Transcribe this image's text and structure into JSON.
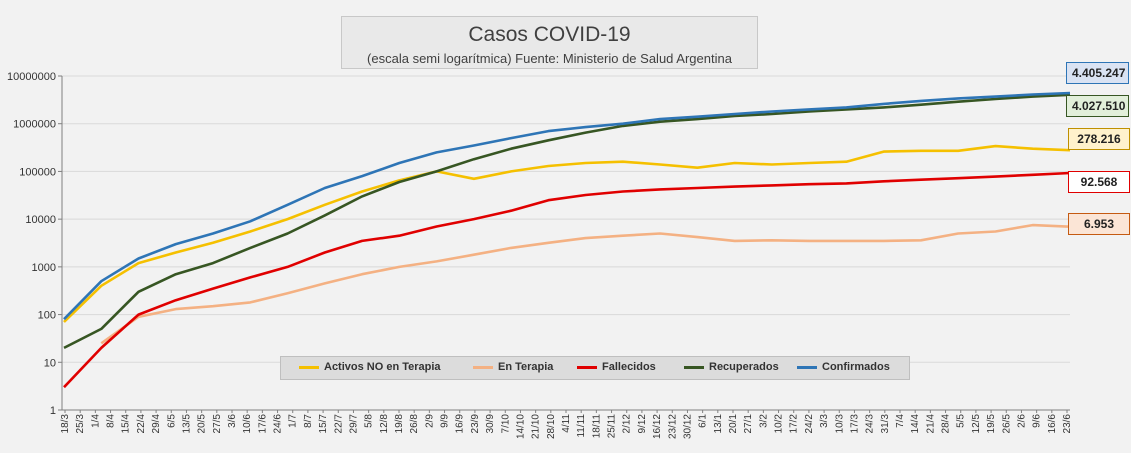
{
  "title": "Casos COVID-19",
  "subtitle": "(escala semi logarítmica) Fuente: Ministerio de Salud Argentina",
  "chart_data": {
    "type": "line",
    "y_scale": "log",
    "ylim": [
      1,
      10000000
    ],
    "y_ticks": [
      "1",
      "10",
      "100",
      "1000",
      "10000",
      "100000",
      "1000000",
      "10000000"
    ],
    "x_tick_labels": [
      "18/3",
      "25/3",
      "1/4",
      "8/4",
      "15/4",
      "22/4",
      "29/4",
      "6/5",
      "13/5",
      "20/5",
      "27/5",
      "3/6",
      "10/6",
      "17/6",
      "24/6",
      "1/7",
      "8/7",
      "15/7",
      "22/7",
      "29/7",
      "5/8",
      "12/8",
      "19/8",
      "26/8",
      "2/9",
      "9/9",
      "16/9",
      "23/9",
      "30/9",
      "7/10",
      "14/10",
      "21/10",
      "28/10",
      "4/11",
      "11/11",
      "18/11",
      "25/11",
      "2/12",
      "9/12",
      "16/12",
      "23/12",
      "30/12",
      "6/1",
      "13/1",
      "20/1",
      "27/1",
      "3/2",
      "10/2",
      "17/2",
      "24/2",
      "3/3",
      "10/3",
      "17/3",
      "24/3",
      "31/3",
      "7/4",
      "14/4",
      "21/4",
      "28/4",
      "5/5",
      "12/5",
      "19/5",
      "26/5",
      "2/6",
      "9/6",
      "16/6",
      "23/6"
    ],
    "series": [
      {
        "name": "Activos NO en Terapia",
        "color": "#f5c000",
        "values": [
          70,
          400,
          1200,
          2000,
          3200,
          5500,
          10000,
          20000,
          38000,
          65000,
          100000,
          70000,
          100000,
          130000,
          150000,
          160000,
          140000,
          120000,
          150000,
          140000,
          150000,
          160000,
          260000,
          270000,
          270000,
          340000,
          300000,
          278216
        ]
      },
      {
        "name": "En Terapia",
        "color": "#f4b183",
        "values": [
          null,
          25,
          90,
          130,
          150,
          180,
          280,
          450,
          700,
          1000,
          1300,
          1800,
          2500,
          3200,
          4000,
          4500,
          5000,
          4200,
          3500,
          3600,
          3500,
          3500,
          3500,
          3600,
          5000,
          5500,
          7500,
          6953
        ]
      },
      {
        "name": "Fallecidos",
        "color": "#e00000",
        "values": [
          3,
          20,
          100,
          200,
          350,
          600,
          1000,
          2000,
          3500,
          4500,
          7000,
          10000,
          15000,
          25000,
          32000,
          38000,
          42000,
          45000,
          48000,
          51000,
          54000,
          56000,
          62000,
          67000,
          72000,
          78000,
          85000,
          92568
        ]
      },
      {
        "name": "Recuperados",
        "color": "#375623",
        "values": [
          20,
          50,
          300,
          700,
          1200,
          2500,
          5000,
          12000,
          30000,
          60000,
          100000,
          180000,
          300000,
          450000,
          650000,
          900000,
          1100000,
          1250000,
          1450000,
          1600000,
          1800000,
          2000000,
          2200000,
          2500000,
          2900000,
          3300000,
          3700000,
          4027510
        ]
      },
      {
        "name": "Confirmados",
        "color": "#2e75b6",
        "values": [
          80,
          500,
          1500,
          3000,
          5000,
          9000,
          20000,
          45000,
          80000,
          150000,
          250000,
          350000,
          500000,
          700000,
          850000,
          1000000,
          1250000,
          1400000,
          1600000,
          1800000,
          2000000,
          2200000,
          2600000,
          3000000,
          3400000,
          3700000,
          4100000,
          4405247
        ]
      }
    ],
    "callouts": [
      {
        "series": "Confirmados",
        "label": "4.405.247",
        "bg": "#dae3f3",
        "border": "#2e75b6"
      },
      {
        "series": "Recuperados",
        "label": "4.027.510",
        "bg": "#e2efda",
        "border": "#375623"
      },
      {
        "series": "Activos NO en Terapia",
        "label": "278.216",
        "bg": "#fff2cc",
        "border": "#bf9000"
      },
      {
        "series": "Fallecidos",
        "label": "92.568",
        "bg": "#ffffff",
        "border": "#e00000"
      },
      {
        "series": "En Terapia",
        "label": "6.953",
        "bg": "#fbe5d6",
        "border": "#c55a11"
      }
    ]
  }
}
